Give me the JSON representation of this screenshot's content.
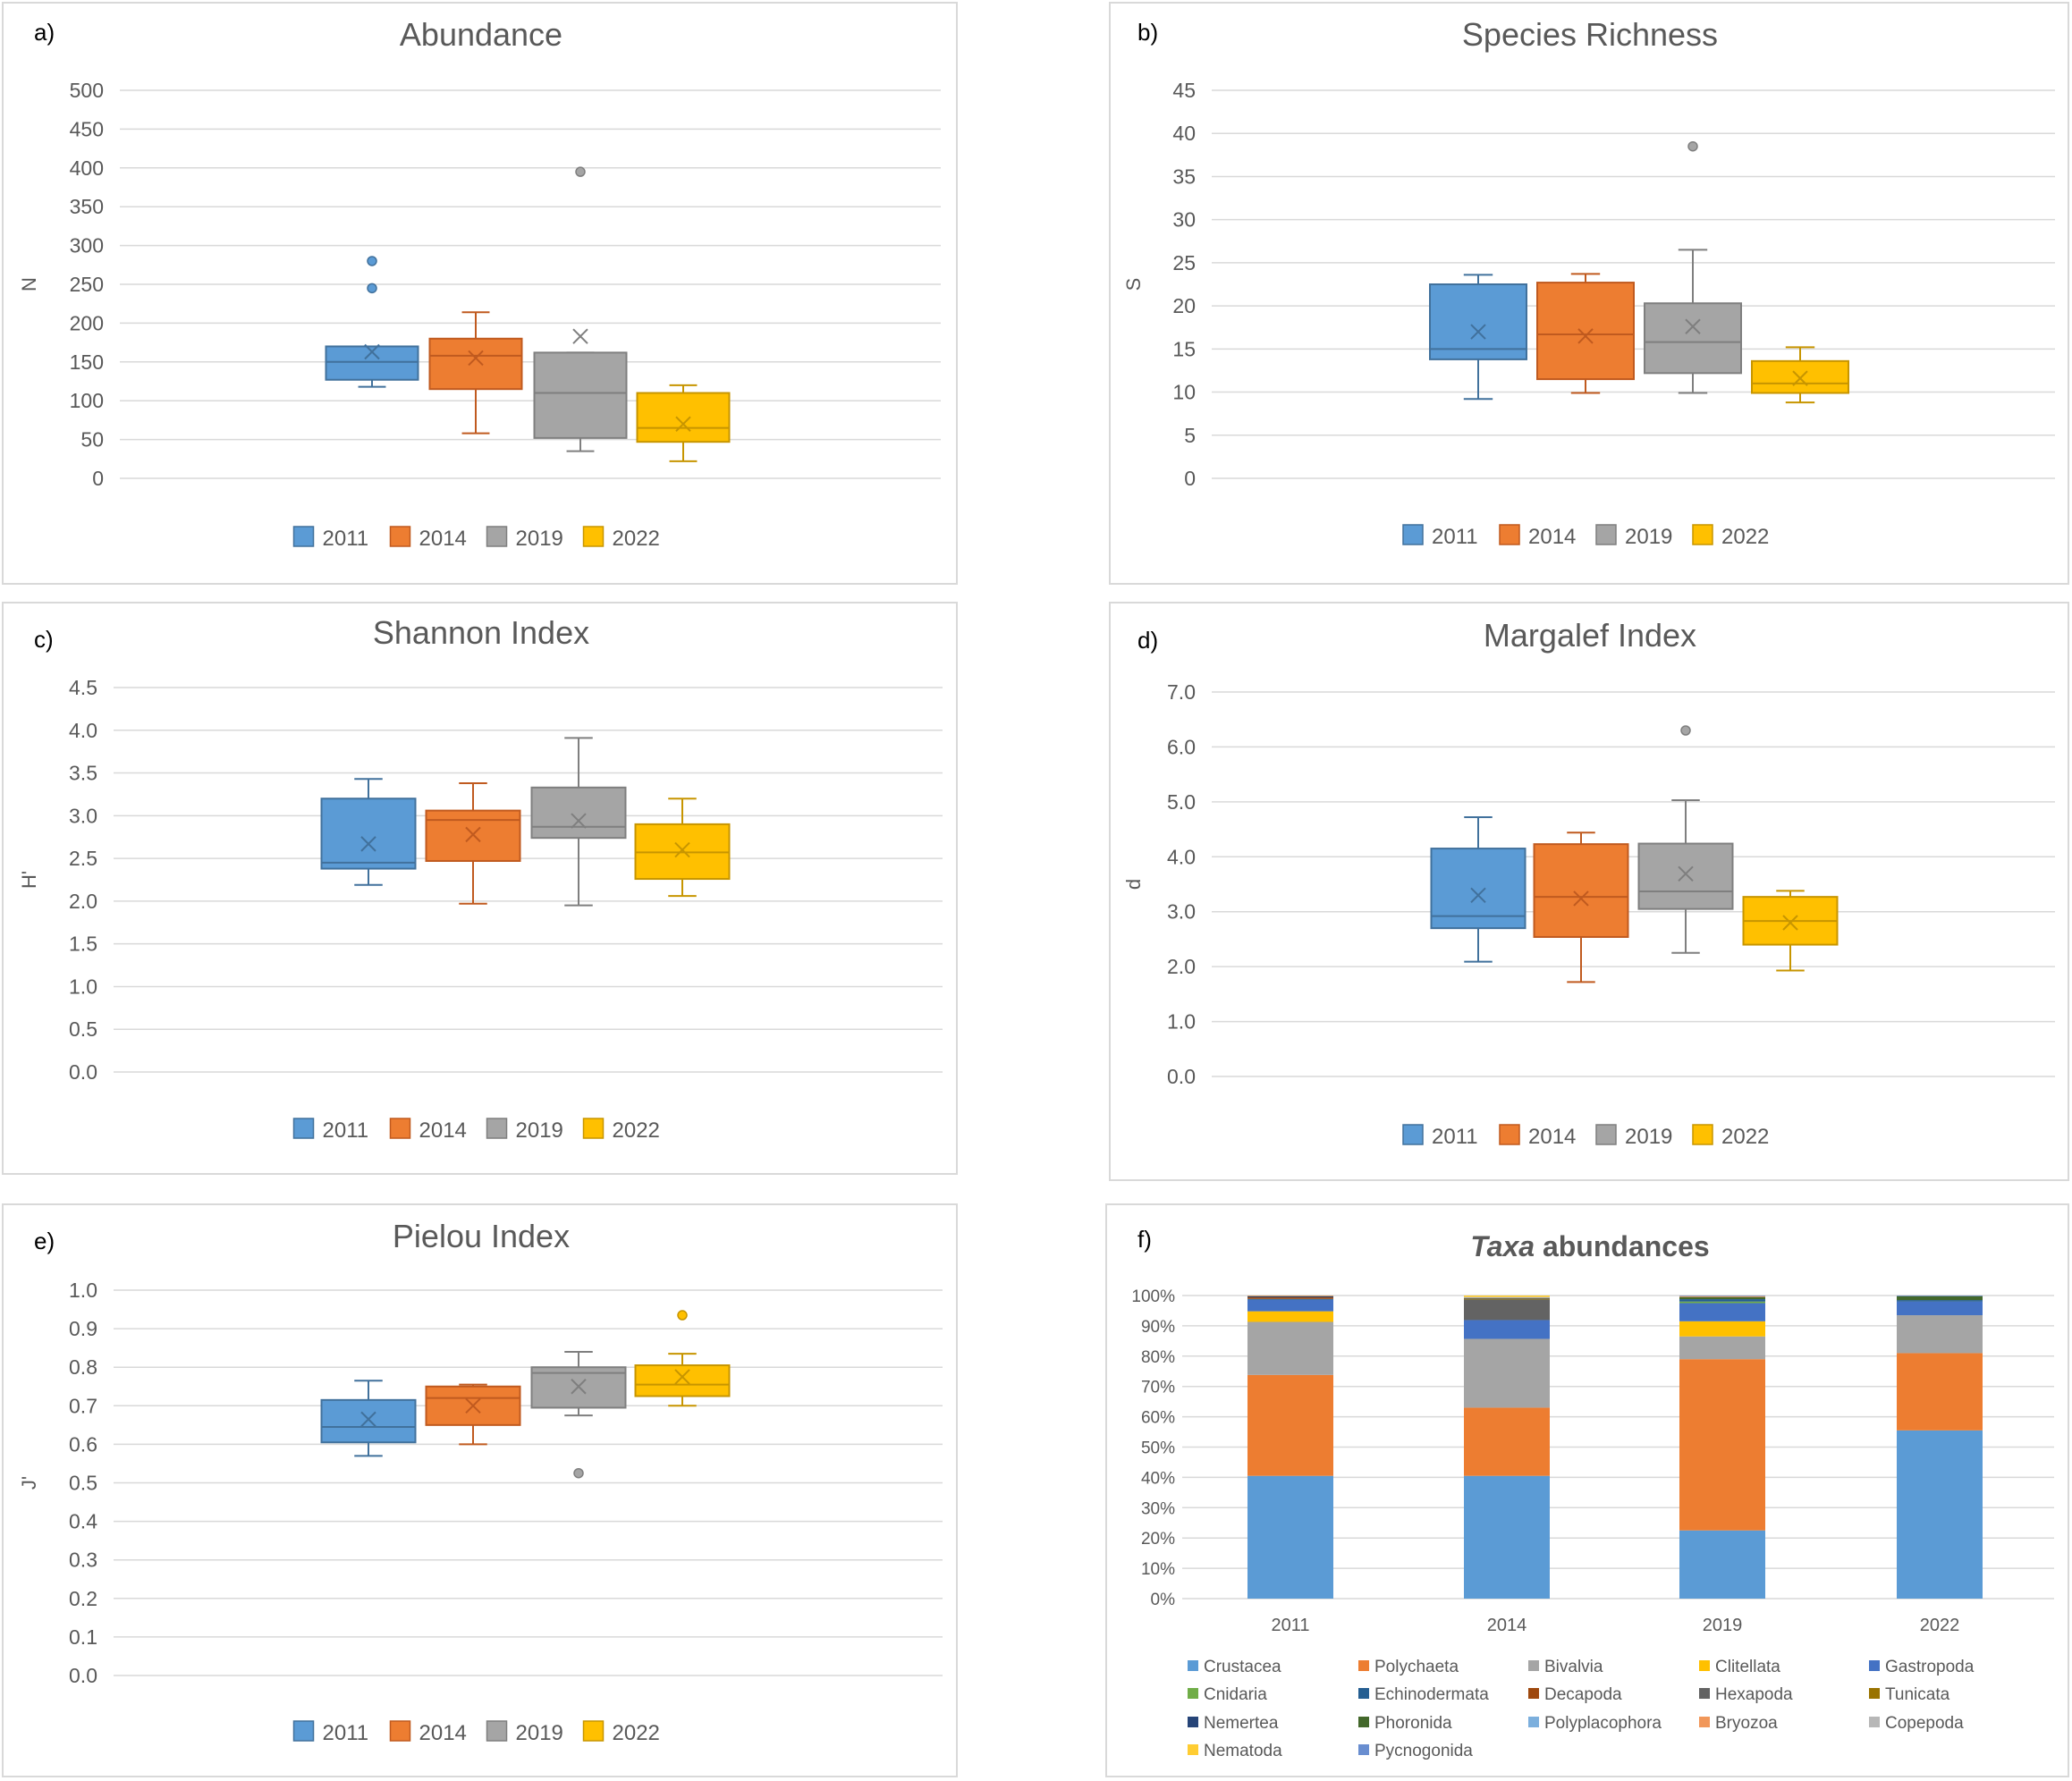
{
  "series_colors": {
    "2011": "#5b9bd5",
    "2014": "#ed7d31",
    "2019": "#a5a5a5",
    "2022": "#ffc000"
  },
  "series_borders": {
    "2011": "#41719c",
    "2014": "#c05a1f",
    "2019": "#7f7f7f",
    "2022": "#c79500"
  },
  "chart_data": [
    {
      "panel_label": "a)",
      "type": "box",
      "title": "Abundance",
      "ylabel": "N",
      "ylim": [
        0,
        500
      ],
      "yticks": [
        "0",
        "50",
        "100",
        "150",
        "200",
        "250",
        "300",
        "350",
        "400",
        "450",
        "500"
      ],
      "legend": [
        "2011",
        "2014",
        "2019",
        "2022"
      ],
      "boxes": [
        {
          "name": "2011",
          "whisker_low": 118,
          "q1": 127,
          "median": 150,
          "q3": 170,
          "whisker_high": 170,
          "mean": 163,
          "outliers": [
            245,
            280
          ]
        },
        {
          "name": "2014",
          "whisker_low": 58,
          "q1": 115,
          "median": 158,
          "q3": 180,
          "whisker_high": 214,
          "mean": 155,
          "outliers": []
        },
        {
          "name": "2019",
          "whisker_low": 35,
          "q1": 52,
          "median": 110,
          "q3": 162,
          "whisker_high": 162,
          "mean": 183,
          "outliers": [
            395
          ]
        },
        {
          "name": "2022",
          "whisker_low": 22,
          "q1": 47,
          "median": 65,
          "q3": 110,
          "whisker_high": 120,
          "mean": 70,
          "outliers": []
        }
      ]
    },
    {
      "panel_label": "b)",
      "type": "box",
      "title": "Species Richness",
      "ylabel": "S",
      "ylim": [
        0,
        45
      ],
      "yticks": [
        "0",
        "5",
        "10",
        "15",
        "20",
        "25",
        "30",
        "35",
        "40",
        "45"
      ],
      "legend": [
        "2011",
        "2014",
        "2019",
        "2022"
      ],
      "boxes": [
        {
          "name": "2011",
          "whisker_low": 9.2,
          "q1": 13.8,
          "median": 15,
          "q3": 22.5,
          "whisker_high": 23.6,
          "mean": 17,
          "outliers": []
        },
        {
          "name": "2014",
          "whisker_low": 9.9,
          "q1": 11.5,
          "median": 16.7,
          "q3": 22.7,
          "whisker_high": 23.7,
          "mean": 16.5,
          "outliers": []
        },
        {
          "name": "2019",
          "whisker_low": 9.9,
          "q1": 12.2,
          "median": 15.8,
          "q3": 20.3,
          "whisker_high": 26.5,
          "mean": 17.6,
          "outliers": [
            38.5
          ]
        },
        {
          "name": "2022",
          "whisker_low": 8.8,
          "q1": 9.9,
          "median": 11,
          "q3": 13.6,
          "whisker_high": 15.2,
          "mean": 11.6,
          "outliers": []
        }
      ]
    },
    {
      "panel_label": "c)",
      "type": "box",
      "title": "Shannon Index",
      "ylabel": "H'",
      "ylim": [
        0,
        4.5
      ],
      "yticks": [
        "0.0",
        "0.5",
        "1.0",
        "1.5",
        "2.0",
        "2.5",
        "3.0",
        "3.5",
        "4.0",
        "4.5"
      ],
      "legend": [
        "2011",
        "2014",
        "2019",
        "2022"
      ],
      "boxes": [
        {
          "name": "2011",
          "whisker_low": 2.19,
          "q1": 2.38,
          "median": 2.45,
          "q3": 3.2,
          "whisker_high": 3.43,
          "mean": 2.67,
          "outliers": []
        },
        {
          "name": "2014",
          "whisker_low": 1.97,
          "q1": 2.47,
          "median": 2.95,
          "q3": 3.06,
          "whisker_high": 3.38,
          "mean": 2.78,
          "outliers": []
        },
        {
          "name": "2019",
          "whisker_low": 1.95,
          "q1": 2.74,
          "median": 2.87,
          "q3": 3.33,
          "whisker_high": 3.91,
          "mean": 2.94,
          "outliers": []
        },
        {
          "name": "2022",
          "whisker_low": 2.06,
          "q1": 2.26,
          "median": 2.57,
          "q3": 2.9,
          "whisker_high": 3.2,
          "mean": 2.6,
          "outliers": []
        }
      ]
    },
    {
      "panel_label": "d)",
      "type": "box",
      "title": "Margalef Index",
      "ylabel": "d",
      "ylim": [
        0,
        7
      ],
      "yticks": [
        "0.0",
        "1.0",
        "2.0",
        "3.0",
        "4.0",
        "5.0",
        "6.0",
        "7.0"
      ],
      "legend": [
        "2011",
        "2014",
        "2019",
        "2022"
      ],
      "boxes": [
        {
          "name": "2011",
          "whisker_low": 2.09,
          "q1": 2.7,
          "median": 2.92,
          "q3": 4.15,
          "whisker_high": 4.72,
          "mean": 3.3,
          "outliers": []
        },
        {
          "name": "2014",
          "whisker_low": 1.72,
          "q1": 2.54,
          "median": 3.27,
          "q3": 4.23,
          "whisker_high": 4.44,
          "mean": 3.24,
          "outliers": []
        },
        {
          "name": "2019",
          "whisker_low": 2.25,
          "q1": 3.05,
          "median": 3.37,
          "q3": 4.24,
          "whisker_high": 5.03,
          "mean": 3.69,
          "outliers": [
            6.3
          ]
        },
        {
          "name": "2022",
          "whisker_low": 1.93,
          "q1": 2.4,
          "median": 2.83,
          "q3": 3.27,
          "whisker_high": 3.38,
          "mean": 2.8,
          "outliers": []
        }
      ]
    },
    {
      "panel_label": "e)",
      "type": "box",
      "title": "Pielou Index",
      "ylabel": "J'",
      "ylim": [
        0,
        1
      ],
      "yticks": [
        "0.0",
        "0.1",
        "0.2",
        "0.3",
        "0.4",
        "0.5",
        "0.6",
        "0.7",
        "0.8",
        "0.9",
        "1.0"
      ],
      "legend": [
        "2011",
        "2014",
        "2019",
        "2022"
      ],
      "boxes": [
        {
          "name": "2011",
          "whisker_low": 0.57,
          "q1": 0.605,
          "median": 0.645,
          "q3": 0.715,
          "whisker_high": 0.765,
          "mean": 0.665,
          "outliers": []
        },
        {
          "name": "2014",
          "whisker_low": 0.6,
          "q1": 0.65,
          "median": 0.72,
          "q3": 0.75,
          "whisker_high": 0.755,
          "mean": 0.7,
          "outliers": []
        },
        {
          "name": "2019",
          "whisker_low": 0.675,
          "q1": 0.695,
          "median": 0.785,
          "q3": 0.8,
          "whisker_high": 0.84,
          "mean": 0.75,
          "outliers": [
            0.525
          ]
        },
        {
          "name": "2022",
          "whisker_low": 0.7,
          "q1": 0.725,
          "median": 0.755,
          "q3": 0.805,
          "whisker_high": 0.835,
          "mean": 0.775,
          "outliers": [
            0.935
          ]
        }
      ]
    },
    {
      "panel_label": "f)",
      "type": "bar",
      "stacked": true,
      "title_italic": "Taxa",
      "title_rest": " abundances",
      "categories": [
        "2011",
        "2014",
        "2019",
        "2022"
      ],
      "yticks": [
        "0%",
        "10%",
        "20%",
        "30%",
        "40%",
        "50%",
        "60%",
        "70%",
        "80%",
        "90%",
        "100%"
      ],
      "series": [
        {
          "name": "Crustacea",
          "color": "#5b9bd5",
          "values": [
            40.5,
            40.5,
            22.5,
            55.5
          ]
        },
        {
          "name": "Polychaeta",
          "color": "#ed7d31",
          "values": [
            33.3,
            22.5,
            56.5,
            25.5
          ]
        },
        {
          "name": "Bivalvia",
          "color": "#a5a5a5",
          "values": [
            17.5,
            22.7,
            7.5,
            12.5
          ]
        },
        {
          "name": "Clitellata",
          "color": "#ffc000",
          "values": [
            3.5,
            0,
            5,
            0
          ]
        },
        {
          "name": "Gastropoda",
          "color": "#4472c4",
          "values": [
            3.8,
            6.2,
            6,
            4.5
          ]
        },
        {
          "name": "Cnidaria",
          "color": "#70ad47",
          "values": [
            0,
            0,
            0.5,
            0
          ]
        },
        {
          "name": "Echinodermata",
          "color": "#255e91",
          "values": [
            0.3,
            0,
            0.8,
            0.5
          ]
        },
        {
          "name": "Decapoda",
          "color": "#9e480e",
          "values": [
            0.5,
            0,
            0,
            0
          ]
        },
        {
          "name": "Hexapoda",
          "color": "#636363",
          "values": [
            0,
            6.8,
            0,
            0
          ]
        },
        {
          "name": "Tunicata",
          "color": "#997300",
          "values": [
            0,
            0.3,
            0,
            0
          ]
        },
        {
          "name": "Nemertea",
          "color": "#264478",
          "values": [
            0.3,
            0.2,
            0,
            0
          ]
        },
        {
          "name": "Phoronida",
          "color": "#43682b",
          "values": [
            0.1,
            0,
            0.7,
            1.3
          ]
        },
        {
          "name": "Polyplacophora",
          "color": "#7cafdd",
          "values": [
            0,
            0,
            0,
            0
          ]
        },
        {
          "name": "Bryozoa",
          "color": "#f1975a",
          "values": [
            0.2,
            0,
            0.3,
            0
          ]
        },
        {
          "name": "Copepoda",
          "color": "#b7b7b7",
          "values": [
            0,
            0.3,
            0,
            0
          ]
        },
        {
          "name": "Nematoda",
          "color": "#ffcd33",
          "values": [
            0,
            0.5,
            0,
            0
          ]
        },
        {
          "name": "Pycnogonida",
          "color": "#698ed0",
          "values": [
            0,
            0,
            0.2,
            0.2
          ]
        }
      ]
    }
  ]
}
